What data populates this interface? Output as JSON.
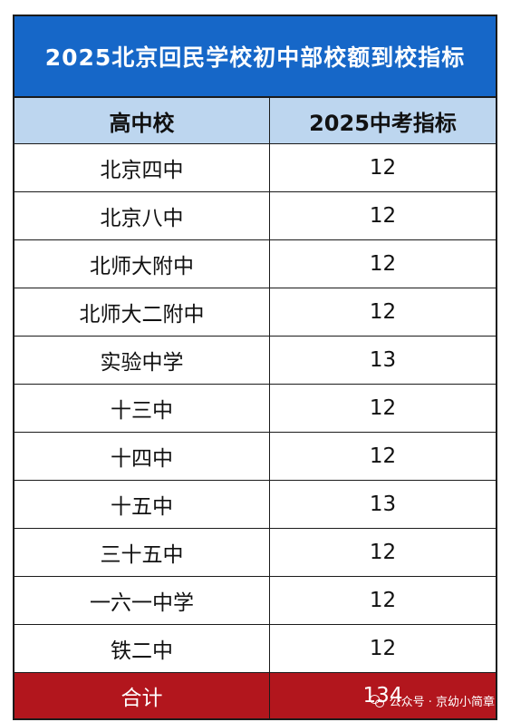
{
  "title": "2025北京回民学校初中部校额到校指标",
  "header": {
    "school": "高中校",
    "quota": "2025中考指标"
  },
  "rows": [
    {
      "school": "北京四中",
      "quota": "12"
    },
    {
      "school": "北京八中",
      "quota": "12"
    },
    {
      "school": "北师大附中",
      "quota": "12"
    },
    {
      "school": "北师大二附中",
      "quota": "12"
    },
    {
      "school": "实验中学",
      "quota": "13"
    },
    {
      "school": "十三中",
      "quota": "12"
    },
    {
      "school": "十四中",
      "quota": "12"
    },
    {
      "school": "十五中",
      "quota": "13"
    },
    {
      "school": "三十五中",
      "quota": "12"
    },
    {
      "school": "一六一中学",
      "quota": "12"
    },
    {
      "school": "铁二中",
      "quota": "12"
    }
  ],
  "total": {
    "label": "合计",
    "value": "134"
  },
  "watermark": {
    "text": "公众号 · 京幼小简章",
    "icon": "wechat-icon"
  },
  "colors": {
    "title_bg": "#1667c8",
    "header_bg": "#bdd6ef",
    "total_bg": "#b2161d"
  }
}
